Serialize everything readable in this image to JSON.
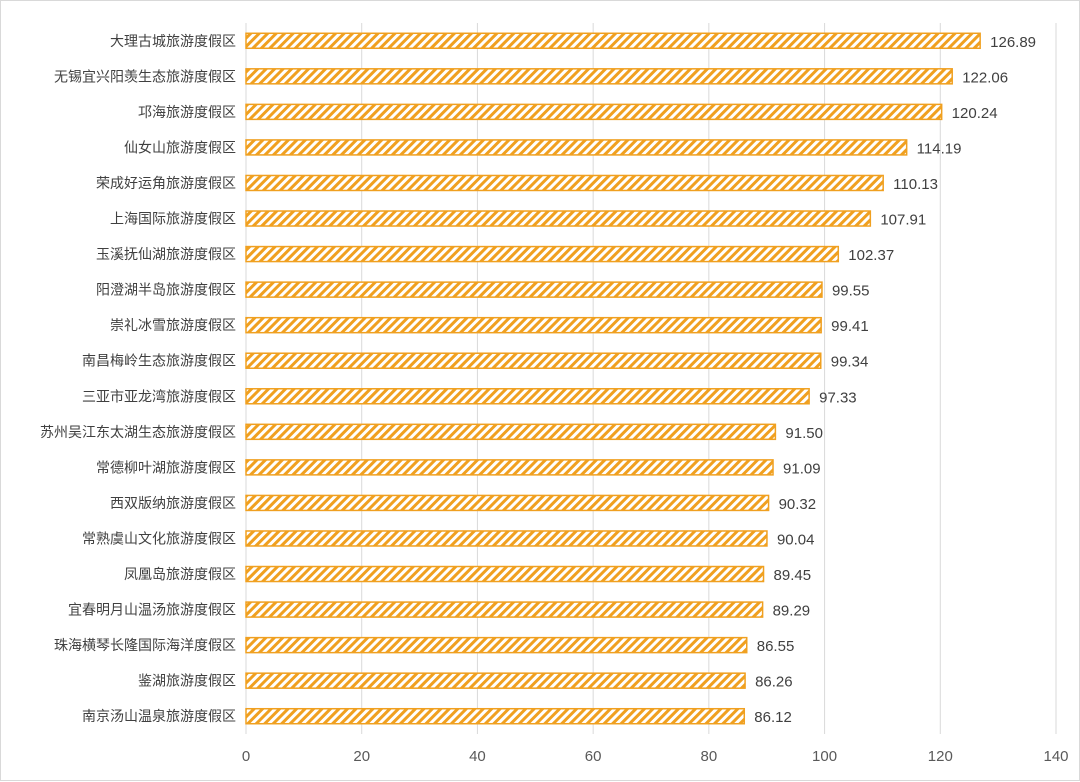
{
  "chart_data": {
    "type": "bar",
    "orientation": "horizontal",
    "categories": [
      "大理古城旅游度假区",
      "无锡宜兴阳羡生态旅游度假区",
      "邛海旅游度假区",
      "仙女山旅游度假区",
      "荣成好运角旅游度假区",
      "上海国际旅游度假区",
      "玉溪抚仙湖旅游度假区",
      "阳澄湖半岛旅游度假区",
      "崇礼冰雪旅游度假区",
      "南昌梅岭生态旅游度假区",
      "三亚市亚龙湾旅游度假区",
      "苏州吴江东太湖生态旅游度假区",
      "常德柳叶湖旅游度假区",
      "西双版纳旅游度假区",
      "常熟虞山文化旅游度假区",
      "凤凰岛旅游度假区",
      "宜春明月山温汤旅游度假区",
      "珠海横琴长隆国际海洋度假区",
      "鉴湖旅游度假区",
      "南京汤山温泉旅游度假区"
    ],
    "values": [
      126.89,
      122.06,
      120.24,
      114.19,
      110.13,
      107.91,
      102.37,
      99.55,
      99.41,
      99.34,
      97.33,
      91.5,
      91.09,
      90.32,
      90.04,
      89.45,
      89.29,
      86.55,
      86.26,
      86.12
    ],
    "value_labels": [
      "126.89",
      "122.06",
      "120.24",
      "114.19",
      "110.13",
      "107.91",
      "102.37",
      "99.55",
      "99.41",
      "99.34",
      "97.33",
      "91.50",
      "91.09",
      "90.32",
      "90.04",
      "89.45",
      "89.29",
      "86.55",
      "86.26",
      "86.12"
    ],
    "xlim": [
      0,
      140
    ],
    "xticks": [
      0,
      20,
      40,
      60,
      80,
      100,
      120,
      140
    ],
    "grid": "vertical",
    "legend": "none",
    "title": "",
    "xlabel": "",
    "ylabel": "",
    "bar_color": "#f0a020",
    "bar_pattern": "diagonal-hatch",
    "grid_color": "#d9d9d9"
  }
}
